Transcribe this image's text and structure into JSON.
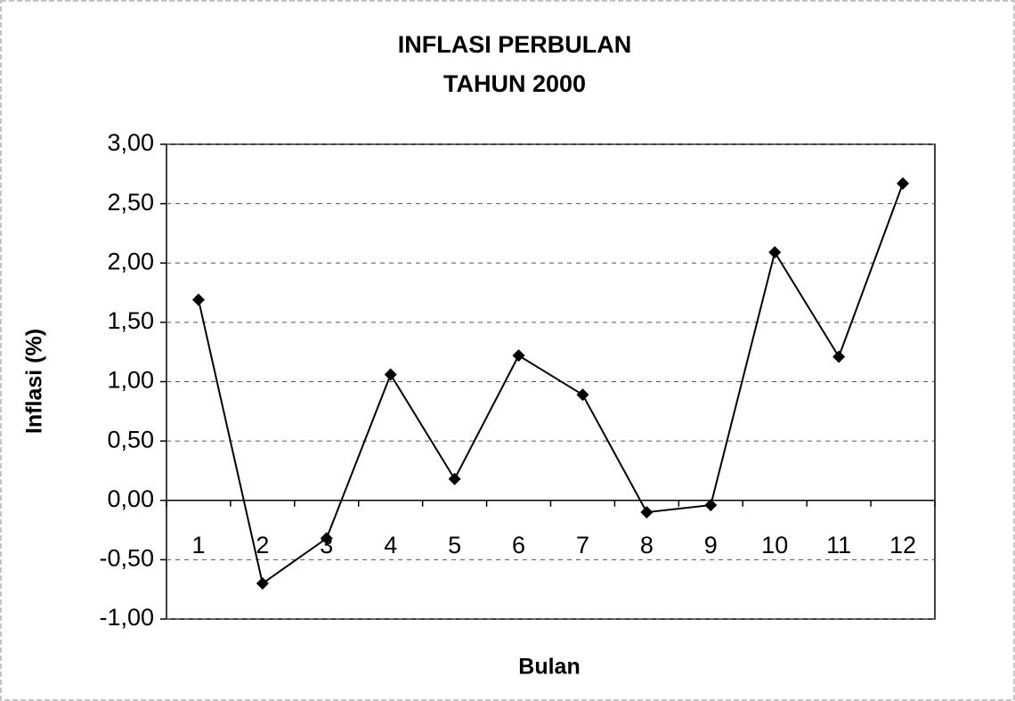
{
  "chart_data": {
    "type": "line",
    "title": [
      "INFLASI PERBULAN",
      "TAHUN 2000"
    ],
    "x_label": "Bulan",
    "y_label": "Inflasi (%)",
    "categories": [
      "1",
      "2",
      "3",
      "4",
      "5",
      "6",
      "7",
      "8",
      "9",
      "10",
      "11",
      "12"
    ],
    "series": [
      {
        "name": "Inflasi",
        "color": "#000000",
        "values": [
          1.69,
          -0.7,
          -0.32,
          1.06,
          0.18,
          1.22,
          0.89,
          -0.1,
          -0.04,
          2.09,
          1.21,
          2.67
        ]
      }
    ],
    "ylim": [
      -1,
      3
    ],
    "yticks": [
      {
        "value": -1,
        "label": "-1,00"
      },
      {
        "value": -0.5,
        "label": "-0,50"
      },
      {
        "value": 0,
        "label": "0,00"
      },
      {
        "value": 0.5,
        "label": "0,50"
      },
      {
        "value": 1,
        "label": "1,00"
      },
      {
        "value": 1.5,
        "label": "1,50"
      },
      {
        "value": 2,
        "label": "2,00"
      },
      {
        "value": 2.5,
        "label": "2,50"
      },
      {
        "value": 3,
        "label": "3,00"
      }
    ],
    "grid": true
  }
}
